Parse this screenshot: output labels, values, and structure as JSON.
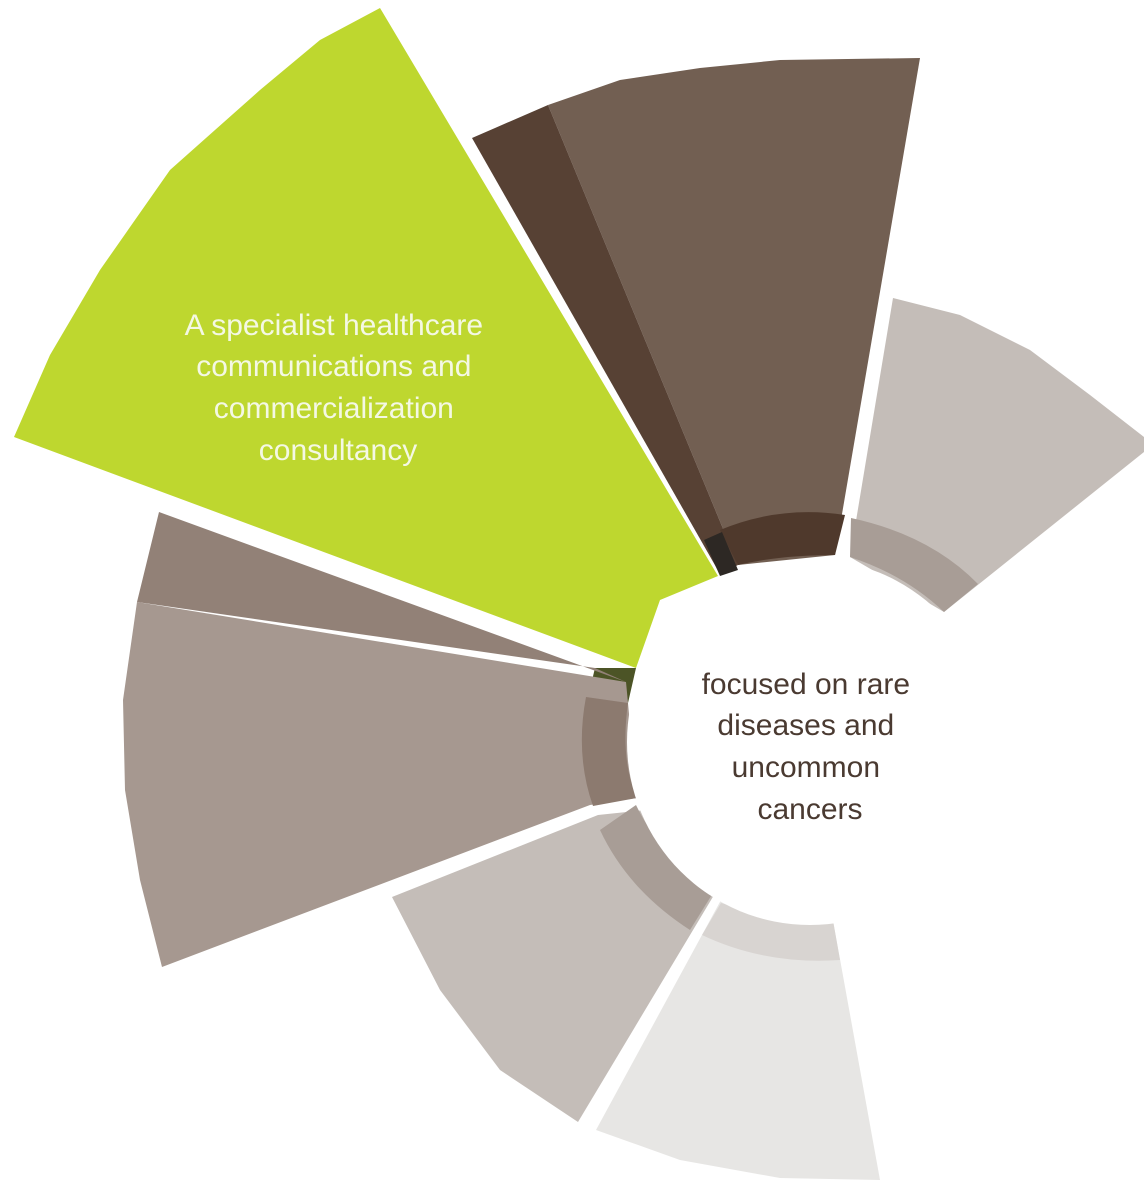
{
  "feature_segment": {
    "lines": [
      "A specialist healthcare",
      "communications and",
      "commercialization",
      "consultancy"
    ]
  },
  "center_label": {
    "lines": [
      "focused on rare",
      "diseases and",
      "uncommon",
      "cancers"
    ]
  },
  "colors": {
    "background": "#ffffff",
    "feature_green": "#bed72f",
    "feature_green_dark": "#4c5426",
    "dark_brown": "#725f52",
    "darker_brown": "#574134",
    "deepest_brown": "#4f392c",
    "mid_brown": "#a69890",
    "mid_brown_dark": "#8c7a6f",
    "light_taupe": "#c4bdb8",
    "light_taupe_dark": "#a89d96",
    "pale_grey": "#e7e6e4",
    "pale_grey_dark": "#d8d4d1",
    "center_text": "#4a3a31",
    "feature_text": "#f4f8e4"
  }
}
